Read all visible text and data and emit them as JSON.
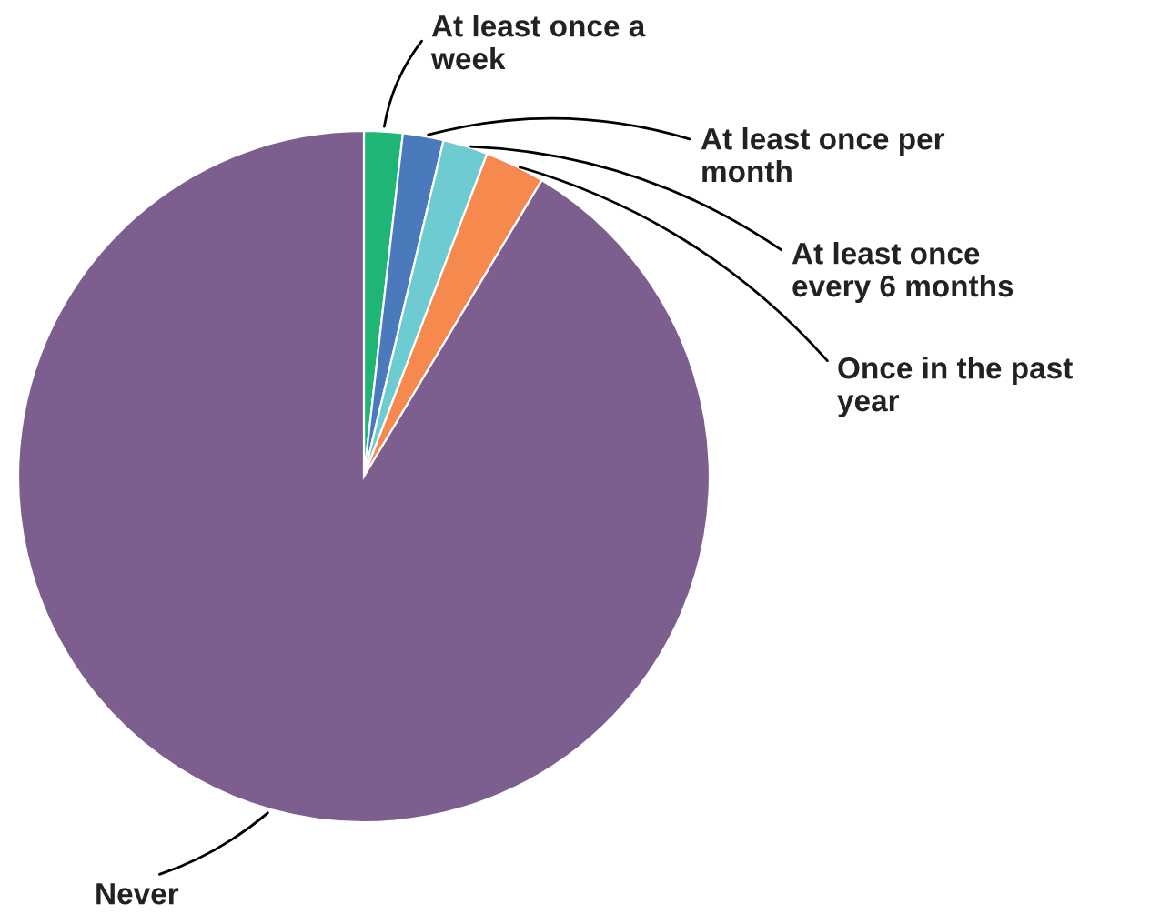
{
  "chart_data": {
    "type": "pie",
    "categories": [
      "At least once a\nweek",
      "At least once per\nmonth",
      "At least once\nevery 6 months",
      "Once in the past\nyear",
      "Never"
    ],
    "values": [
      1.8,
      1.9,
      2.1,
      2.8,
      91.4
    ],
    "colors": [
      "#1fb574",
      "#4a7abc",
      "#6dcbd1",
      "#f68a4e",
      "#7c5e8f"
    ],
    "legend": false
  }
}
